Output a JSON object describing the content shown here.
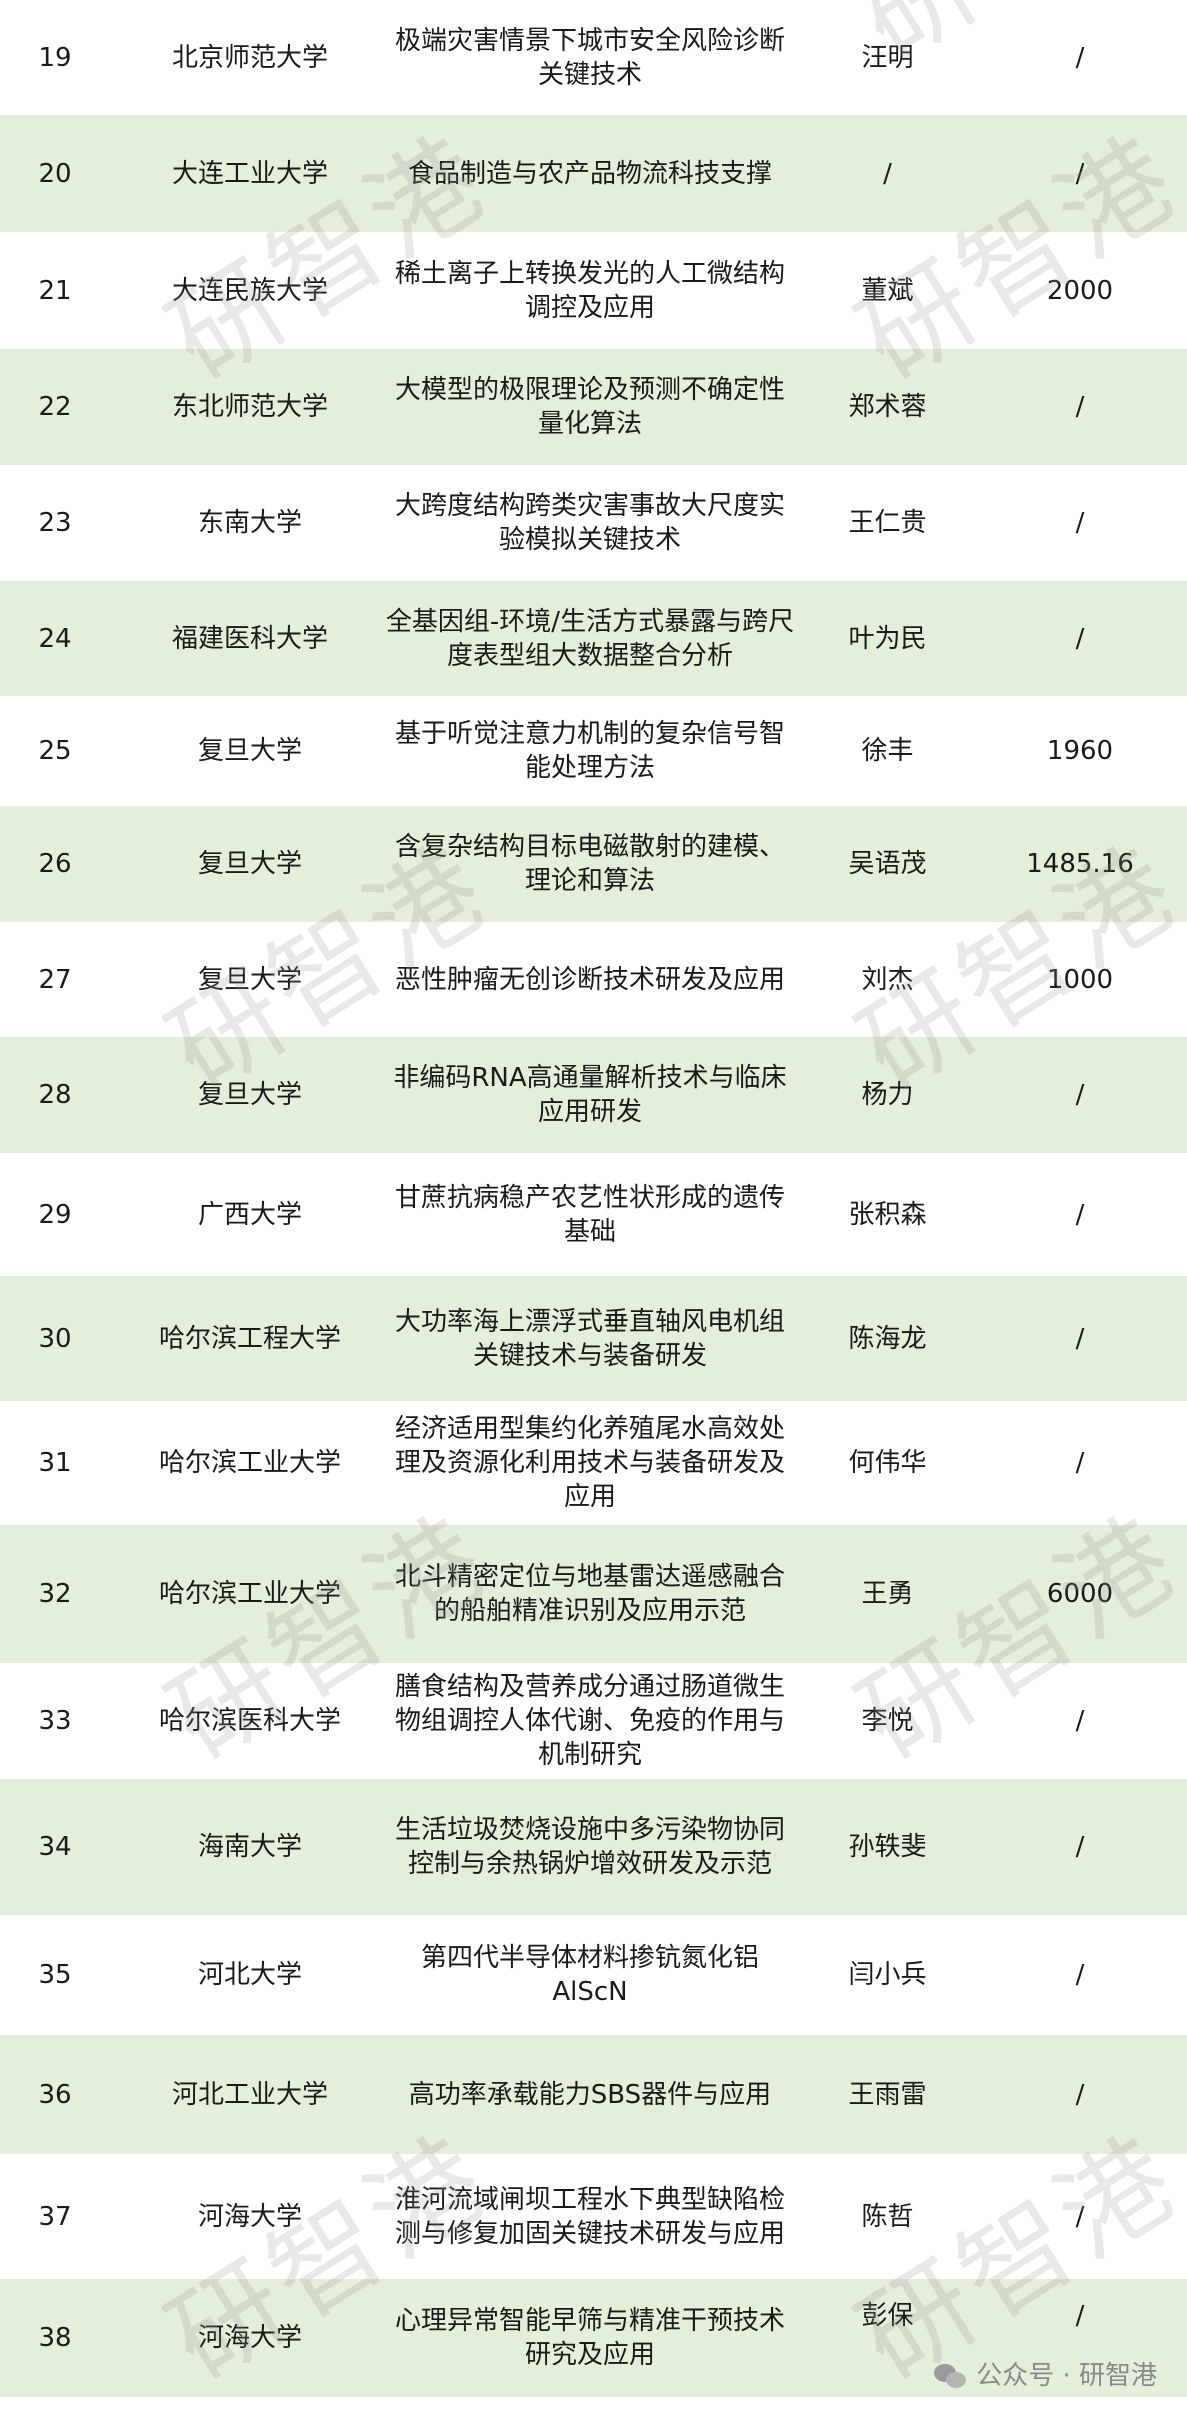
{
  "rows": [
    {
      "no": "19",
      "univ": "北京师范大学",
      "project": "极端灾害情景下城市安全风险诊断关键技术",
      "leader": "汪明",
      "amount": "/"
    },
    {
      "no": "20",
      "univ": "大连工业大学",
      "project": "食品制造与农产品物流科技支撑",
      "leader": "/",
      "amount": "/"
    },
    {
      "no": "21",
      "univ": "大连民族大学",
      "project": "稀土离子上转换发光的人工微结构调控及应用",
      "leader": "董斌",
      "amount": "2000"
    },
    {
      "no": "22",
      "univ": "东北师范大学",
      "project": "大模型的极限理论及预测不确定性量化算法",
      "leader": "郑术蓉",
      "amount": "/"
    },
    {
      "no": "23",
      "univ": "东南大学",
      "project": "大跨度结构跨类灾害事故大尺度实验模拟关键技术",
      "leader": "王仁贵",
      "amount": "/"
    },
    {
      "no": "24",
      "univ": "福建医科大学",
      "project": "全基因组-环境/生活方式暴露与跨尺度表型组大数据整合分析",
      "leader": "叶为民",
      "amount": "/"
    },
    {
      "no": "25",
      "univ": "复旦大学",
      "project": "基于听觉注意力机制的复杂信号智能处理方法",
      "leader": "徐丰",
      "amount": "1960"
    },
    {
      "no": "26",
      "univ": "复旦大学",
      "project": "含复杂结构目标电磁散射的建模、理论和算法",
      "leader": "吴语茂",
      "amount": "1485.16"
    },
    {
      "no": "27",
      "univ": "复旦大学",
      "project": "恶性肿瘤无创诊断技术研发及应用",
      "leader": "刘杰",
      "amount": "1000"
    },
    {
      "no": "28",
      "univ": "复旦大学",
      "project": "非编码RNA高通量解析技术与临床应用研发",
      "leader": "杨力",
      "amount": "/"
    },
    {
      "no": "29",
      "univ": "广西大学",
      "project": "甘蔗抗病稳产农艺性状形成的遗传基础",
      "leader": "张积森",
      "amount": "/"
    },
    {
      "no": "30",
      "univ": "哈尔滨工程大学",
      "project": "大功率海上漂浮式垂直轴风电机组关键技术与装备研发",
      "leader": "陈海龙",
      "amount": "/"
    },
    {
      "no": "31",
      "univ": "哈尔滨工业大学",
      "project": "经济适用型集约化养殖尾水高效处理及资源化利用技术与装备研发及应用",
      "leader": "何伟华",
      "amount": "/"
    },
    {
      "no": "32",
      "univ": "哈尔滨工业大学",
      "project": "北斗精密定位与地基雷达遥感融合的船舶精准识别及应用示范",
      "leader": "王勇",
      "amount": "6000"
    },
    {
      "no": "33",
      "univ": "哈尔滨医科大学",
      "project": "膳食结构及营养成分通过肠道微生物组调控人体代谢、免疫的作用与机制研究",
      "leader": "李悦",
      "amount": "/"
    },
    {
      "no": "34",
      "univ": "海南大学",
      "project": "生活垃圾焚烧设施中多污染物协同控制与余热锅炉增效研发及示范",
      "leader": "孙轶斐",
      "amount": "/"
    },
    {
      "no": "35",
      "univ": "河北大学",
      "project": "第四代半导体材料掺钪氮化铝AlScN",
      "leader": "闫小兵",
      "amount": "/"
    },
    {
      "no": "36",
      "univ": "河北工业大学",
      "project": "高功率承载能力SBS器件与应用",
      "leader": "王雨雷",
      "amount": "/"
    },
    {
      "no": "37",
      "univ": "河海大学",
      "project": "淮河流域闸坝工程水下典型缺陷检测与修复加固关键技术研发与应用",
      "leader": "陈哲",
      "amount": "/"
    },
    {
      "no": "38",
      "univ": "河海大学",
      "project": "心理异常智能早筛与精准干预技术研究及应用",
      "leader": "彭保",
      "amount": "/"
    }
  ],
  "watermark": "研智港",
  "footer": {
    "label": "公众号 · 研智港",
    "icon": "wechat-icon"
  },
  "colors": {
    "alt_row": "#e3eedb",
    "text": "#1a1a1a",
    "watermark": "#969696"
  }
}
